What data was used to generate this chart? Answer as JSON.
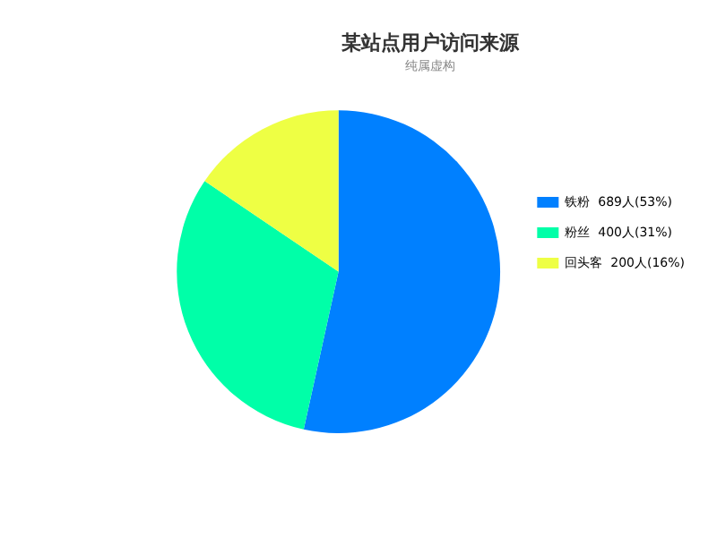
{
  "chart_data": {
    "type": "pie",
    "title": "某站点用户访问来源",
    "subtitle": "纯属虚构",
    "categories": [
      "铁粉",
      "粉丝",
      "回头客"
    ],
    "values": [
      689,
      400,
      200
    ],
    "value_labels": [
      "689人(53%)",
      "400人(31%)",
      "200人(16%)"
    ],
    "colors": [
      "#0080ff",
      "#00ffa8",
      "#eeff44"
    ],
    "legend": "right"
  }
}
